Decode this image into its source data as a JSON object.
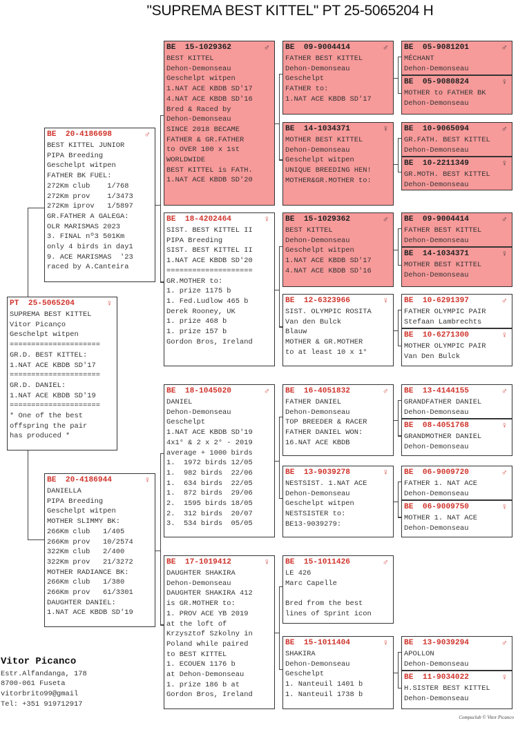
{
  "title": "\"SUPREMA BEST KITTEL\"  PT  25-5065204 H",
  "colors": {
    "highlight_box": "#f79a9a",
    "ring_red": "#d0342c"
  },
  "boxes": [
    {
      "id": "subject",
      "country": "PT",
      "ring": "25-5065204",
      "sex": "♀",
      "highlight": false,
      "lines": [
        "SUPREMA BEST KITTEL",
        "Vitor Picanço",
        "Geschelpt witpen",
        "=====================",
        "GR.D. BEST KITTEL:",
        "1.NAT ACE KBDB SD'17",
        "=====================",
        "GR.D. DANIEL:",
        "1.NAT ACE KBDB SD'19",
        "=====================",
        "* One of the best",
        "offspring the pair",
        "has produced *"
      ]
    },
    {
      "id": "sire",
      "country": "BE",
      "ring": "20-4186698",
      "sex": "♂",
      "highlight": false,
      "lines": [
        "BEST KITTEL JUNIOR",
        "PIPA Breeding",
        "Geschelpt witpen",
        "FATHER BK FUEL:",
        "272Km club    1/768",
        "272Km prov    1/3473",
        "272Km iprov   1/5897",
        "GR.FATHER A GALEGA:",
        "OLR MARISMAS 2023",
        "3. FINAL nº3 501Km",
        "only 4 birds in day1",
        "9. ACE MARISMAS  '23",
        "raced by A.Canteira"
      ]
    },
    {
      "id": "dam",
      "country": "BE",
      "ring": "20-4186944",
      "sex": "♀",
      "highlight": false,
      "lines": [
        "DANIELLA",
        "PIPA Breeding",
        "Geschelpt witpen",
        "MOTHER SLIMMY BK:",
        "266Km club   1/405",
        "266Km prov   10/2574",
        "322Km club   2/400",
        "322Km prov   21/3272",
        "MOTHER RADIANCE BK:",
        "266Km club   1/380",
        "266Km prov   61/3301",
        "DAUGHTER DANIEL:",
        "1.NAT ACE KBDB SD'19"
      ]
    },
    {
      "id": "ss",
      "country": "BE",
      "ring": "15-1029362",
      "sex": "♂",
      "highlight": true,
      "lines": [
        "BEST KITTEL",
        "Dehon-Demonseau",
        "Geschelpt witpen",
        "1.NAT ACE KBDB SD'17",
        "4.NAT ACE KBDB SD'16",
        "Bred & Raced by",
        "Dehon-Demonseau",
        "SINCE 2018 BECAME",
        "FATHER & GR.FATHER",
        "to OVER 100 x 1st",
        "WORLDWIDE",
        "BEST KITTEL is FATH.",
        "1.NAT ACE KBDB SD'20"
      ]
    },
    {
      "id": "sd",
      "country": "BE",
      "ring": "18-4202464",
      "sex": "♀",
      "highlight": false,
      "lines": [
        "SIST. BEST KITTEL II",
        "PIPA Breeding",
        "SIST. BEST KITTEL II",
        "1.NAT ACE KBDB SD'20",
        "====================",
        "GR.MOTHER to:",
        "1. prize 1175 b",
        "1. Fed.Ludlow 465 b",
        "Derek Rooney, UK",
        "1. prize 468 b",
        "1. prize 157 b",
        "Gordon Bros, Ireland"
      ]
    },
    {
      "id": "ds",
      "country": "BE",
      "ring": "18-1045020",
      "sex": "♂",
      "highlight": false,
      "lines": [
        "DANIEL",
        "Dehon-Demonseau",
        "Geschelpt",
        "1.NAT ACE KBDB SD'19",
        "4x1° & 2 x 2° - 2019",
        "average + 1000 birds",
        "1.  1972 birds 12/05",
        "1.  982 birds  22/06",
        "1.  634 birds  22/05",
        "1.  872 birds  29/06",
        "2.  1595 birds 18/05",
        "2.  312 birds  20/07",
        "3.  534 birds  05/05"
      ]
    },
    {
      "id": "dd",
      "country": "BE",
      "ring": "17-1019412",
      "sex": "♀",
      "highlight": false,
      "lines": [
        "DAUGHTER SHAKIRA",
        "Dehon-Demonseau",
        "DAUGHTER SHAKIRA 412",
        "is GR.MOTHER to:",
        "1. PROV ACE YB 2019",
        "at the loft of",
        "Krzysztof Szkolny in",
        "Poland while paired",
        "to BEST KITTEL",
        "1. ECOUEN 1176 b",
        "at Dehon-Demonseau",
        "1. prize 186 b at",
        "Gordon Bros, Ireland"
      ]
    },
    {
      "id": "sss",
      "country": "BE",
      "ring": "09-9004414",
      "sex": "♂",
      "highlight": true,
      "lines": [
        "FATHER BEST KITTEL",
        "Dehon-Demonseau",
        "Geschelpt",
        "FATHER to:",
        "1.NAT ACE KBDB SD'17"
      ]
    },
    {
      "id": "ssd",
      "country": "BE",
      "ring": "14-1034371",
      "sex": "♀",
      "highlight": true,
      "lines": [
        "MOTHER BEST KITTEL",
        "Dehon-Demonseau",
        "Geschelpt witpen",
        "UNIQUE BREEDING HEN!",
        "MOTHER&GR.MOTHER to:"
      ]
    },
    {
      "id": "sds",
      "country": "BE",
      "ring": "15-1029362",
      "sex": "♂",
      "highlight": true,
      "lines": [
        "BEST KITTEL",
        "Dehon-Demonseau",
        "Geschelpt witpen",
        "1.NAT ACE KBDB SD'17",
        "4.NAT ACE KBDB SD'16"
      ]
    },
    {
      "id": "sdd",
      "country": "BE",
      "ring": "12-6323966",
      "sex": "♀",
      "highlight": false,
      "lines": [
        "SIST. OLYMPIC ROSITA",
        "Van den Bulck",
        "Blauw",
        "MOTHER & GR.MOTHER",
        "to at least 10 x 1°"
      ]
    },
    {
      "id": "dss",
      "country": "BE",
      "ring": "16-4051832",
      "sex": "♂",
      "highlight": false,
      "lines": [
        "FATHER DANIEL",
        "Dehon-Demonseau",
        "TOP BREEDER & RACER",
        "FATHER DANIEL WON:",
        "16.NAT ACE KBDB"
      ]
    },
    {
      "id": "dsd",
      "country": "BE",
      "ring": "13-9039278",
      "sex": "♀",
      "highlight": false,
      "lines": [
        "NESTSIST. 1.NAT ACE",
        "Dehon-Demonseau",
        "Geschelpt witpen",
        "NESTSISTER to:",
        "BE13-9039279:"
      ]
    },
    {
      "id": "dds",
      "country": "BE",
      "ring": "15-1011426",
      "sex": "♂",
      "highlight": false,
      "lines": [
        "LE 426",
        "Marc Capelle",
        "",
        "Bred from the best",
        "lines of Sprint icon"
      ]
    },
    {
      "id": "ddd",
      "country": "BE",
      "ring": "15-1011404",
      "sex": "♀",
      "highlight": false,
      "lines": [
        "SHAKIRA",
        "Dehon-Demonseau",
        "Geschelpt",
        "1. Nanteuil 1401 b",
        "1. Nanteuil 1738 b"
      ]
    },
    {
      "id": "ssss",
      "country": "BE",
      "ring": "05-9081201",
      "sex": "♂",
      "highlight": true,
      "lines": [
        "MÉCHANT",
        "Dehon-Demonseau"
      ]
    },
    {
      "id": "sssd",
      "country": "BE",
      "ring": "05-9080824",
      "sex": "♀",
      "highlight": true,
      "lines": [
        "MOTHER to FATHER BK",
        "Dehon-Demonseau"
      ]
    },
    {
      "id": "ssds",
      "country": "BE",
      "ring": "10-9065094",
      "sex": "♂",
      "highlight": true,
      "lines": [
        "GR.FATH. BEST KITTEL",
        "Dehon-Demonseau"
      ]
    },
    {
      "id": "ssdd",
      "country": "BE",
      "ring": "10-2211349",
      "sex": "♀",
      "highlight": true,
      "lines": [
        "GR.MOTH. BEST KITTEL",
        "Dehon-Demonseau"
      ]
    },
    {
      "id": "sdss",
      "country": "BE",
      "ring": "09-9004414",
      "sex": "♂",
      "highlight": true,
      "lines": [
        "FATHER BEST KITTEL",
        "Dehon-Demonseau"
      ]
    },
    {
      "id": "sdsd",
      "country": "BE",
      "ring": "14-1034371",
      "sex": "♀",
      "highlight": true,
      "lines": [
        "MOTHER BEST KITTEL",
        "Dehon-Demonseau"
      ]
    },
    {
      "id": "sdds",
      "country": "BE",
      "ring": "10-6291397",
      "sex": "♂",
      "highlight": false,
      "lines": [
        "FATHER OLYMPIC PAIR",
        "Stefaan Lambrechts"
      ]
    },
    {
      "id": "sddd",
      "country": "BE",
      "ring": "10-6271300",
      "sex": "♀",
      "highlight": false,
      "lines": [
        "MOTHER OLYMPIC PAIR",
        "Van Den Bulck"
      ]
    },
    {
      "id": "dsss",
      "country": "BE",
      "ring": "13-4144155",
      "sex": "♂",
      "highlight": false,
      "lines": [
        "GRANDFATHER DANIEL",
        "Dehon-Demonseau"
      ]
    },
    {
      "id": "dssd",
      "country": "BE",
      "ring": "08-4051768",
      "sex": "♀",
      "highlight": false,
      "lines": [
        "GRANDMOTHER DANIEL",
        "Dehon-Demonseau"
      ]
    },
    {
      "id": "dsds",
      "country": "BE",
      "ring": "06-9009720",
      "sex": "♂",
      "highlight": false,
      "lines": [
        "FATHER 1. NAT ACE",
        "Dehon-Demonseau"
      ]
    },
    {
      "id": "dsdd",
      "country": "BE",
      "ring": "06-9009750",
      "sex": "♀",
      "highlight": false,
      "lines": [
        "MOTHER 1. NAT ACE",
        "Dehon-Demonseau"
      ]
    },
    {
      "id": "ddds",
      "country": "BE",
      "ring": "13-9039294",
      "sex": "♂",
      "highlight": false,
      "lines": [
        "APOLLON",
        "Dehon-Demonseau"
      ]
    },
    {
      "id": "dddd",
      "country": "BE",
      "ring": "11-9034022",
      "sex": "♀",
      "highlight": false,
      "lines": [
        "H.SISTER BEST KITTEL",
        "Dehon-Demonseau"
      ]
    }
  ],
  "breeder": {
    "name": "Vitor Picanco",
    "address": "Estr.Alfandanga, 178",
    "city": "8700-061 Fuseta",
    "email": "vitorbrito99@gmail",
    "phone": "Tel: +351 919712917"
  },
  "credit": "Compuclub © Vitor Picanco"
}
